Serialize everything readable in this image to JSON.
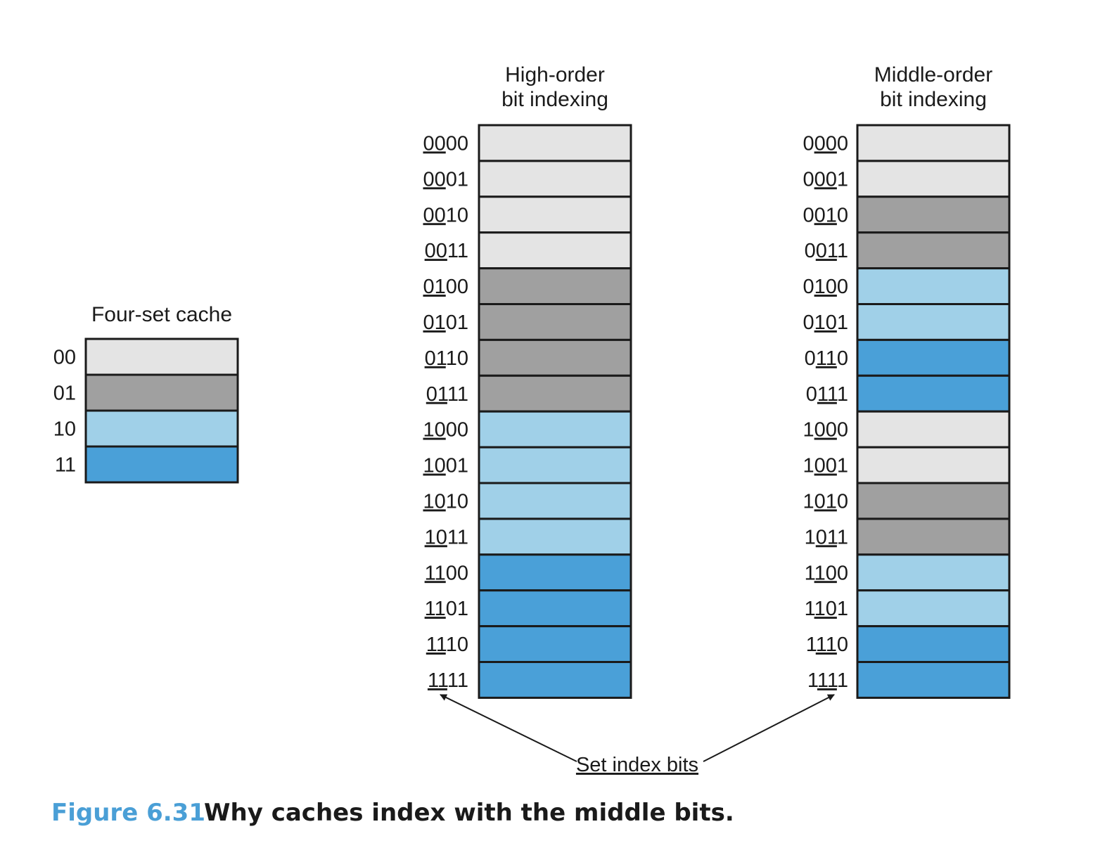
{
  "colors": {
    "set_00": "#e4e4e4",
    "set_01": "#a0a0a0",
    "set_10": "#a0d0e8",
    "set_11": "#4aa0d8",
    "caption_accent": "#4a9fd6",
    "stroke": "#1a1a1a"
  },
  "four_set_cache": {
    "title": "Four-set cache",
    "sets": [
      "00",
      "01",
      "10",
      "11"
    ]
  },
  "high_order": {
    "title_line1": "High-order",
    "title_line2": "bit indexing",
    "addresses": [
      "0000",
      "0001",
      "0010",
      "0011",
      "0100",
      "0101",
      "0110",
      "0111",
      "1000",
      "1001",
      "1010",
      "1011",
      "1100",
      "1101",
      "1110",
      "1111"
    ],
    "index_bits": "high"
  },
  "middle_order": {
    "title_line1": "Middle-order",
    "title_line2": "bit indexing",
    "addresses": [
      "0000",
      "0001",
      "0010",
      "0011",
      "0100",
      "0101",
      "0110",
      "0111",
      "1000",
      "1001",
      "1010",
      "1011",
      "1100",
      "1101",
      "1110",
      "1111"
    ],
    "index_bits": "middle"
  },
  "annotation": {
    "label": "Set index bits"
  },
  "caption": {
    "number": "Figure 6.31",
    "text": "Why caches index with the middle bits."
  }
}
